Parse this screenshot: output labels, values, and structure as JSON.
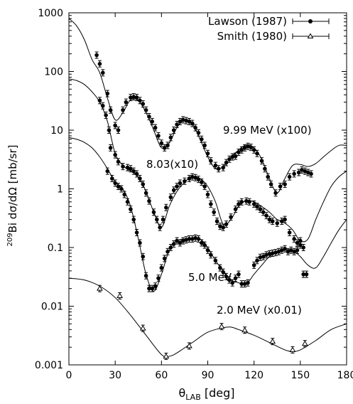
{
  "chart_data": {
    "type": "scatter",
    "xlabel": "θLAB [deg]",
    "ylabel": "209Bi dσ/dΩ [mb/sr]",
    "xlim": [
      0,
      180
    ],
    "ylim": [
      0.001,
      1000
    ],
    "yscale": "log",
    "xticks": [
      "0",
      "30",
      "60",
      "90",
      "120",
      "150",
      "180"
    ],
    "yticks": [
      "0.001",
      "0.01",
      "0.1",
      "1",
      "10",
      "100",
      "1000"
    ],
    "legend": {
      "placement": "top-right",
      "entries": [
        {
          "label": "Lawson (1987)",
          "marker": "filled-circle"
        },
        {
          "label": "Smith (1980)",
          "marker": "open-triangle"
        }
      ]
    },
    "annotations": [
      "9.99 MeV (x100)",
      "8.03(x10)",
      "5.0 MeV",
      "2.0 MeV (x0.01)"
    ],
    "series": [
      {
        "name": "9.99 MeV (x100)",
        "marker": "filled-circle",
        "points": [
          [
            18,
            190
          ],
          [
            20,
            135
          ],
          [
            22,
            95
          ],
          [
            25,
            42
          ],
          [
            27,
            22
          ],
          [
            30,
            12
          ],
          [
            32,
            10
          ],
          [
            35,
            22
          ],
          [
            37,
            30
          ],
          [
            40,
            36
          ],
          [
            42,
            37
          ],
          [
            44,
            36
          ],
          [
            46,
            32
          ],
          [
            48,
            28
          ],
          [
            50,
            22
          ],
          [
            52,
            17
          ],
          [
            54,
            14
          ],
          [
            56,
            11
          ],
          [
            58,
            8
          ],
          [
            60,
            6
          ],
          [
            62,
            5
          ],
          [
            64,
            5.5
          ],
          [
            66,
            7.5
          ],
          [
            68,
            10
          ],
          [
            70,
            12.5
          ],
          [
            72,
            14
          ],
          [
            74,
            15
          ],
          [
            76,
            14.5
          ],
          [
            78,
            14
          ],
          [
            80,
            13
          ],
          [
            82,
            11
          ],
          [
            84,
            9
          ],
          [
            86,
            7
          ],
          [
            88,
            5.5
          ],
          [
            90,
            4
          ],
          [
            92,
            3
          ],
          [
            95,
            2.5
          ],
          [
            97,
            2.2
          ],
          [
            100,
            2.3
          ],
          [
            102,
            2.8
          ],
          [
            104,
            3.2
          ],
          [
            106,
            3.5
          ],
          [
            108,
            3.6
          ],
          [
            110,
            4.2
          ],
          [
            112,
            4.6
          ],
          [
            114,
            5
          ],
          [
            116,
            5.3
          ],
          [
            118,
            5.1
          ],
          [
            120,
            4.6
          ],
          [
            122,
            4
          ],
          [
            125,
            3
          ],
          [
            127,
            2.2
          ],
          [
            129,
            1.6
          ],
          [
            131,
            1.2
          ],
          [
            134,
            0.85
          ],
          [
            137,
            1.1
          ],
          [
            140,
            1.2
          ],
          [
            143,
            1.6
          ],
          [
            146,
            1.8
          ],
          [
            149,
            1.9
          ],
          [
            151,
            2.1
          ],
          [
            153,
            2
          ],
          [
            155,
            1.9
          ],
          [
            157,
            1.8
          ]
        ]
      },
      {
        "name": "8.03(x10)",
        "marker": "filled-circle",
        "points": [
          [
            20,
            32
          ],
          [
            22,
            26
          ],
          [
            24,
            18
          ],
          [
            26,
            10
          ],
          [
            27,
            5
          ],
          [
            30,
            3.8
          ],
          [
            32,
            2.9
          ],
          [
            35,
            2.4
          ],
          [
            38,
            2.3
          ],
          [
            40,
            2.2
          ],
          [
            42,
            2
          ],
          [
            44,
            1.8
          ],
          [
            46,
            1.5
          ],
          [
            48,
            1.2
          ],
          [
            50,
            0.85
          ],
          [
            52,
            0.62
          ],
          [
            55,
            0.4
          ],
          [
            57,
            0.3
          ],
          [
            59,
            0.22
          ],
          [
            61,
            0.3
          ],
          [
            63,
            0.48
          ],
          [
            66,
            0.72
          ],
          [
            68,
            0.95
          ],
          [
            70,
            1.1
          ],
          [
            72,
            1.25
          ],
          [
            75,
            1.35
          ],
          [
            78,
            1.5
          ],
          [
            80,
            1.6
          ],
          [
            82,
            1.55
          ],
          [
            84,
            1.45
          ],
          [
            86,
            1.3
          ],
          [
            88,
            1.1
          ],
          [
            90,
            0.8
          ],
          [
            92,
            0.55
          ],
          [
            94,
            0.4
          ],
          [
            96,
            0.28
          ],
          [
            98,
            0.23
          ],
          [
            100,
            0.22
          ],
          [
            102,
            0.25
          ],
          [
            105,
            0.33
          ],
          [
            108,
            0.45
          ],
          [
            110,
            0.55
          ],
          [
            112,
            0.6
          ],
          [
            115,
            0.62
          ],
          [
            117,
            0.6
          ],
          [
            120,
            0.55
          ],
          [
            122,
            0.5
          ],
          [
            124,
            0.45
          ],
          [
            126,
            0.4
          ],
          [
            128,
            0.35
          ],
          [
            130,
            0.3
          ],
          [
            132,
            0.28
          ],
          [
            135,
            0.26
          ],
          [
            138,
            0.28
          ],
          [
            140,
            0.3
          ],
          [
            143,
            0.18
          ],
          [
            146,
            0.14
          ],
          [
            148,
            0.12
          ],
          [
            150,
            0.13
          ],
          [
            152,
            0.1
          ]
        ]
      },
      {
        "name": "5.0 MeV",
        "marker": "filled-circle",
        "points": [
          [
            25,
            2
          ],
          [
            28,
            1.5
          ],
          [
            30,
            1.25
          ],
          [
            32,
            1.1
          ],
          [
            34,
            1
          ],
          [
            36,
            0.8
          ],
          [
            38,
            0.6
          ],
          [
            40,
            0.45
          ],
          [
            42,
            0.3
          ],
          [
            44,
            0.18
          ],
          [
            46,
            0.12
          ],
          [
            48,
            0.07
          ],
          [
            50,
            0.033
          ],
          [
            52,
            0.02
          ],
          [
            54,
            0.02
          ],
          [
            56,
            0.022
          ],
          [
            58,
            0.03
          ],
          [
            60,
            0.045
          ],
          [
            62,
            0.065
          ],
          [
            64,
            0.085
          ],
          [
            66,
            0.1
          ],
          [
            68,
            0.115
          ],
          [
            70,
            0.13
          ],
          [
            72,
            0.12
          ],
          [
            74,
            0.13
          ],
          [
            76,
            0.135
          ],
          [
            78,
            0.14
          ],
          [
            80,
            0.14
          ],
          [
            82,
            0.145
          ],
          [
            84,
            0.14
          ],
          [
            86,
            0.12
          ],
          [
            88,
            0.11
          ],
          [
            90,
            0.09
          ],
          [
            92,
            0.075
          ],
          [
            95,
            0.06
          ],
          [
            98,
            0.045
          ],
          [
            100,
            0.038
          ],
          [
            102,
            0.032
          ],
          [
            104,
            0.028
          ],
          [
            106,
            0.025
          ],
          [
            108,
            0.03
          ],
          [
            110,
            0.035
          ],
          [
            112,
            0.024
          ],
          [
            114,
            0.024
          ],
          [
            116,
            0.025
          ],
          [
            120,
            0.05
          ],
          [
            122,
            0.06
          ],
          [
            124,
            0.068
          ],
          [
            126,
            0.07
          ],
          [
            128,
            0.075
          ],
          [
            130,
            0.078
          ],
          [
            132,
            0.08
          ],
          [
            134,
            0.082
          ],
          [
            136,
            0.085
          ],
          [
            138,
            0.09
          ],
          [
            140,
            0.095
          ],
          [
            142,
            0.085
          ],
          [
            144,
            0.09
          ],
          [
            146,
            0.085
          ],
          [
            148,
            0.09
          ],
          [
            150,
            0.11
          ],
          [
            152,
            0.035
          ],
          [
            154,
            0.035
          ]
        ]
      },
      {
        "name": "2.0 MeV (x0.01)",
        "marker": "open-triangle",
        "points": [
          [
            20,
            0.02
          ],
          [
            33,
            0.015
          ],
          [
            48,
            0.0042
          ],
          [
            63,
            0.0014
          ],
          [
            78,
            0.0021
          ],
          [
            99,
            0.0045
          ],
          [
            114,
            0.0039
          ],
          [
            132,
            0.0025
          ],
          [
            145,
            0.0018
          ],
          [
            153,
            0.0023
          ]
        ]
      }
    ],
    "curves": [
      {
        "name": "9.99 MeV (x100)",
        "x": [
          0,
          5,
          10,
          15,
          20,
          25,
          30,
          35,
          40,
          45,
          50,
          55,
          60,
          65,
          70,
          75,
          80,
          85,
          90,
          95,
          100,
          105,
          110,
          115,
          120,
          125,
          130,
          135,
          140,
          145,
          150,
          155,
          160,
          165,
          170,
          175,
          180
        ],
        "y": [
          800,
          600,
          350,
          160,
          95,
          35,
          15,
          20,
          33,
          32,
          20,
          10,
          5,
          6,
          11,
          15,
          13,
          7,
          3.5,
          2.2,
          2.4,
          3.4,
          4.6,
          5.6,
          5,
          3.2,
          1.5,
          0.85,
          1.5,
          2.5,
          2.6,
          2.4,
          2.7,
          3.5,
          4.5,
          5.5,
          5.5
        ]
      },
      {
        "name": "8.03(x10)",
        "x": [
          0,
          5,
          10,
          15,
          20,
          25,
          30,
          35,
          40,
          45,
          50,
          55,
          60,
          65,
          70,
          75,
          80,
          85,
          90,
          95,
          100,
          105,
          110,
          115,
          120,
          125,
          130,
          135,
          140,
          145,
          150,
          155,
          160,
          165,
          170,
          175,
          180
        ],
        "y": [
          75,
          70,
          60,
          45,
          30,
          14,
          4,
          2.5,
          2,
          1.6,
          0.9,
          0.4,
          0.22,
          0.5,
          0.9,
          1.3,
          1.6,
          1.5,
          1.1,
          0.6,
          0.25,
          0.3,
          0.5,
          0.63,
          0.6,
          0.5,
          0.4,
          0.3,
          0.26,
          0.2,
          0.13,
          0.14,
          0.3,
          0.6,
          1.1,
          1.6,
          2
        ]
      },
      {
        "name": "5.0 MeV",
        "x": [
          0,
          5,
          10,
          15,
          20,
          25,
          30,
          35,
          40,
          45,
          50,
          55,
          60,
          65,
          70,
          75,
          80,
          85,
          90,
          95,
          100,
          105,
          110,
          115,
          120,
          125,
          130,
          135,
          140,
          145,
          150,
          155,
          160,
          165,
          170,
          175,
          180
        ],
        "y": [
          7.5,
          7,
          6.2,
          5,
          3.5,
          2.2,
          1.3,
          1,
          0.5,
          0.14,
          0.035,
          0.018,
          0.035,
          0.09,
          0.13,
          0.14,
          0.145,
          0.14,
          0.1,
          0.06,
          0.04,
          0.028,
          0.025,
          0.024,
          0.035,
          0.05,
          0.07,
          0.082,
          0.09,
          0.09,
          0.07,
          0.05,
          0.045,
          0.07,
          0.12,
          0.2,
          0.3
        ]
      },
      {
        "name": "2.0 MeV (x0.01)",
        "x": [
          0,
          10,
          20,
          30,
          40,
          50,
          60,
          65,
          70,
          80,
          90,
          100,
          105,
          110,
          120,
          130,
          140,
          145,
          150,
          160,
          170,
          180
        ],
        "y": [
          0.03,
          0.028,
          0.022,
          0.014,
          0.007,
          0.0032,
          0.0015,
          0.0014,
          0.0016,
          0.0024,
          0.0036,
          0.0043,
          0.0044,
          0.004,
          0.0032,
          0.0024,
          0.0018,
          0.0017,
          0.0018,
          0.0026,
          0.004,
          0.005
        ]
      }
    ]
  }
}
